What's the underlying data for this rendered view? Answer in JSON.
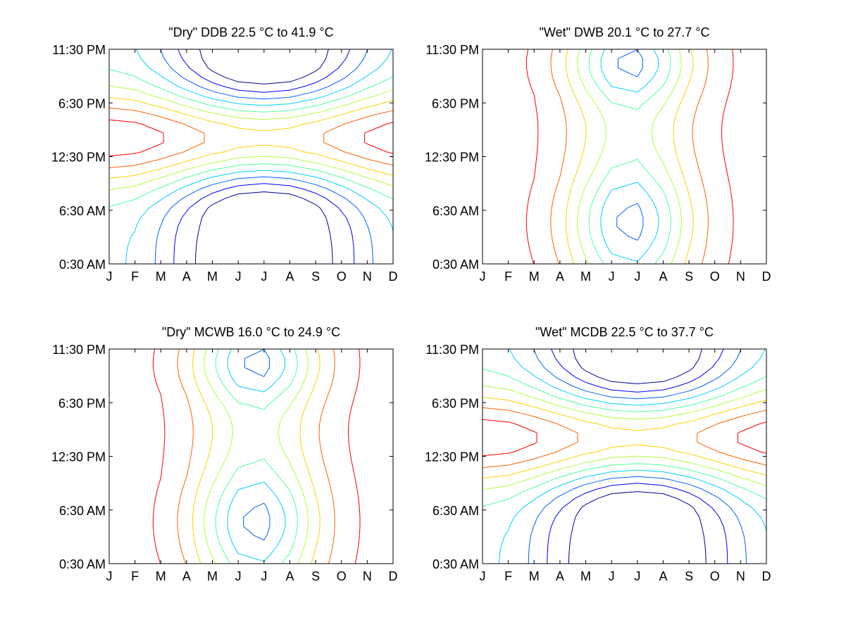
{
  "chart_data": [
    {
      "type": "contour",
      "title": "\"Dry\" DDB  22.5 °C to  41.9 °C",
      "x_ticks": [
        "J",
        "F",
        "M",
        "A",
        "M",
        "J",
        "J",
        "A",
        "S",
        "O",
        "N",
        "D"
      ],
      "y_ticks": [
        "0:30 AM",
        "6:30 AM",
        "12:30 PM",
        "6:30 PM",
        "11:30 PM"
      ],
      "value_range": [
        22.5,
        41.9
      ],
      "levels": [
        {
          "color": "#00008f"
        },
        {
          "color": "#0000ff"
        },
        {
          "color": "#0060ff"
        },
        {
          "color": "#00cfff"
        },
        {
          "color": "#50ff9f"
        },
        {
          "color": "#b0ff40"
        },
        {
          "color": "#ffcf00"
        },
        {
          "color": "#ff6000"
        },
        {
          "color": "#ff0000"
        },
        {
          "color": "#800000"
        }
      ],
      "colormap": "jet",
      "pattern": "cool_summer_night"
    },
    {
      "type": "contour",
      "title": "\"Wet\" DWB  20.1 °C to  27.7 °C",
      "x_ticks": [
        "J",
        "F",
        "M",
        "A",
        "M",
        "J",
        "J",
        "A",
        "S",
        "O",
        "N",
        "D"
      ],
      "y_ticks": [
        "0:30 AM",
        "6:30 AM",
        "12:30 PM",
        "6:30 PM",
        "11:30 PM"
      ],
      "value_range": [
        20.1,
        27.7
      ],
      "colormap": "jet",
      "pattern": "summer_low_bands"
    },
    {
      "type": "contour",
      "title": "\"Dry\" MCWB  16.0 °C to  24.9 °C",
      "x_ticks": [
        "J",
        "F",
        "M",
        "A",
        "M",
        "J",
        "J",
        "A",
        "S",
        "O",
        "N",
        "D"
      ],
      "y_ticks": [
        "0:30 AM",
        "6:30 AM",
        "12:30 PM",
        "6:30 PM",
        "11:30 PM"
      ],
      "value_range": [
        16.0,
        24.9
      ],
      "colormap": "jet",
      "pattern": "summer_low_bands"
    },
    {
      "type": "contour",
      "title": "\"Wet\" MCDB  22.5 °C to  37.7 °C",
      "x_ticks": [
        "J",
        "F",
        "M",
        "A",
        "M",
        "J",
        "J",
        "A",
        "S",
        "O",
        "N",
        "D"
      ],
      "y_ticks": [
        "0:30 AM",
        "6:30 AM",
        "12:30 PM",
        "6:30 PM",
        "11:30 PM"
      ],
      "value_range": [
        22.5,
        37.7
      ],
      "colormap": "jet",
      "pattern": "cool_summer_night"
    }
  ]
}
